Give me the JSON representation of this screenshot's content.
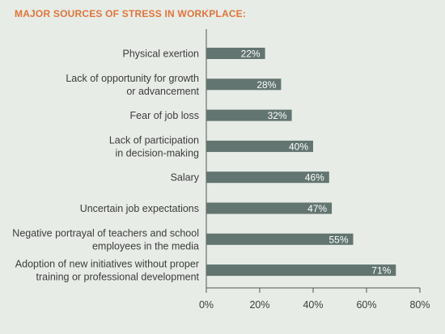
{
  "title": "MAJOR SOURCES OF STRESS IN WORKPLACE:",
  "colors": {
    "bar": "#627571",
    "label": "#3c3c3c",
    "axis": "#555555",
    "title": "#e2743a",
    "background": "#e8ece7"
  },
  "chart_data": {
    "type": "bar",
    "orientation": "horizontal",
    "title": "MAJOR SOURCES OF STRESS IN WORKPLACE:",
    "categories": [
      [
        "Physical exertion"
      ],
      [
        "Lack of opportunity for growth",
        "or advancement"
      ],
      [
        "Fear of job loss"
      ],
      [
        "Lack of participation",
        "in decision-making"
      ],
      [
        "Salary"
      ],
      [
        "Uncertain job expectations"
      ],
      [
        "Negative portrayal of teachers and school",
        "employees in the media"
      ],
      [
        "Adoption of new initiatives without proper",
        "training or professional development"
      ]
    ],
    "values": [
      22,
      28,
      32,
      40,
      46,
      47,
      55,
      71
    ],
    "data_labels": [
      "22%",
      "28%",
      "32%",
      "40%",
      "46%",
      "47%",
      "55%",
      "71%"
    ],
    "x_ticks": [
      "0%",
      "20%",
      "40%",
      "60%",
      "80%"
    ],
    "xlim": [
      0,
      80
    ],
    "grid": false,
    "legend": "none"
  }
}
